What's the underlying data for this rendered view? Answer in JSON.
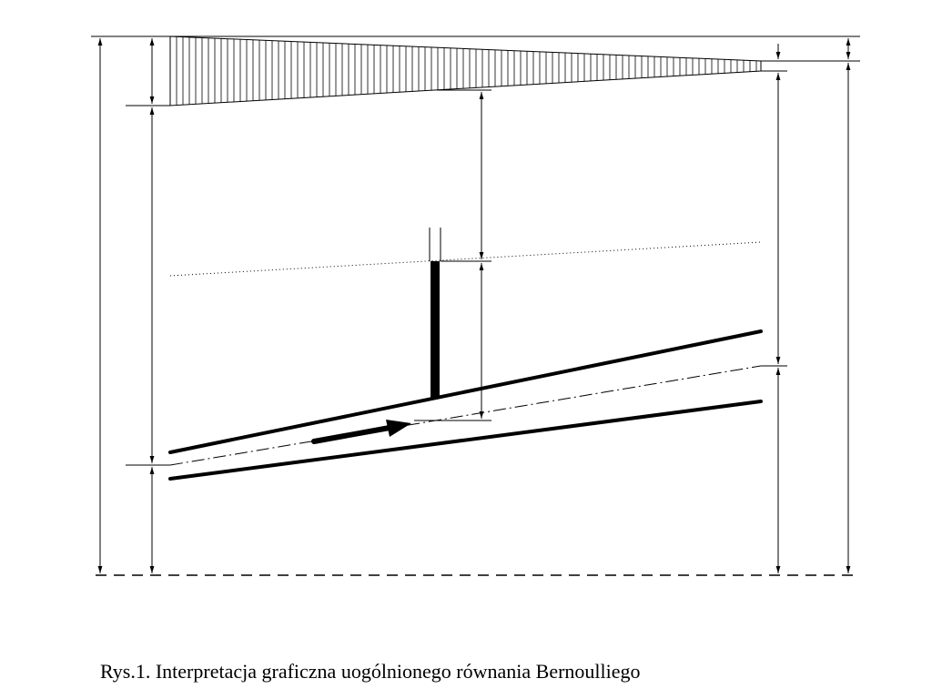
{
  "caption": "Rys.1. Interpretacja graficzna uogólnionego równania Bernoulliego"
}
